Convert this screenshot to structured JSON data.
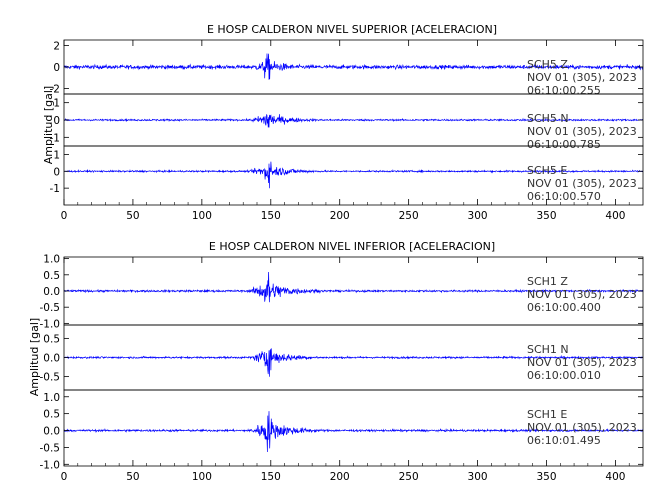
{
  "chart_data": [
    {
      "type": "line",
      "title": "E HOSP CALDERON NIVEL SUPERIOR [ACELERACION]",
      "ylabel": "Amplitud [gal]",
      "xlim": [
        0,
        420
      ],
      "xticks": [
        0,
        50,
        100,
        150,
        200,
        250,
        300,
        350,
        400
      ],
      "xtick_labels": [
        "0",
        "50",
        "100",
        "150",
        "200",
        "250",
        "300",
        "350",
        "400"
      ],
      "series": [
        {
          "name": "SCH5 Z",
          "station": "SCH5",
          "component": "Z",
          "date": "NOV 01 (305), 2023",
          "start_time": "06:10:00.255",
          "ylim": [
            -2.5,
            2.5
          ],
          "yticks": [
            -2,
            0,
            2
          ],
          "ytick_labels": [
            "-2",
            "0",
            "2"
          ],
          "peak_abs_amplitude": 2.0,
          "onset_s": 133,
          "peak_time_s": 148,
          "noise_amplitude": 0.3,
          "color": "#0000ff"
        },
        {
          "name": "SCH5 N",
          "station": "SCH5",
          "component": "N",
          "date": "NOV 01 (305), 2023",
          "start_time": "06:10:00.785",
          "ylim": [
            -1.5,
            1.5
          ],
          "yticks": [
            -1,
            0,
            1
          ],
          "ytick_labels": [
            "-1",
            "0",
            "1"
          ],
          "peak_abs_amplitude": 1.2,
          "onset_s": 133,
          "peak_time_s": 148,
          "noise_amplitude": 0.08,
          "color": "#0000ff"
        },
        {
          "name": "SCH5 E",
          "station": "SCH5",
          "component": "E",
          "date": "NOV 01 (305), 2023",
          "start_time": "06:10:00.570",
          "ylim": [
            -2,
            1.5
          ],
          "yticks": [
            -1,
            0,
            1
          ],
          "ytick_labels": [
            "-1",
            "0",
            "1"
          ],
          "peak_abs_amplitude": 1.3,
          "onset_s": 133,
          "peak_time_s": 148,
          "noise_amplitude": 0.08,
          "color": "#0000ff"
        }
      ]
    },
    {
      "type": "line",
      "title": "E HOSP CALDERON NIVEL INFERIOR [ACELERACION]",
      "ylabel": "Amplitud [gal]",
      "xlim": [
        0,
        420
      ],
      "xticks": [
        0,
        50,
        100,
        150,
        200,
        250,
        300,
        350,
        400
      ],
      "xtick_labels": [
        "0",
        "50",
        "100",
        "150",
        "200",
        "250",
        "300",
        "350",
        "400"
      ],
      "series": [
        {
          "name": "SCH1 Z",
          "station": "SCH1",
          "component": "Z",
          "date": "NOV 01 (305), 2023",
          "start_time": "06:10:00.400",
          "ylim": [
            -1.05,
            1.05
          ],
          "yticks": [
            -1.0,
            -0.5,
            0.0,
            0.5,
            1.0
          ],
          "ytick_labels": [
            "-1.0",
            "-0.5",
            "0.0",
            "0.5",
            "1.0"
          ],
          "peak_abs_amplitude": 1.0,
          "onset_s": 133,
          "peak_time_s": 148,
          "noise_amplitude": 0.05,
          "color": "#0000ff"
        },
        {
          "name": "SCH1 N",
          "station": "SCH1",
          "component": "N",
          "date": "NOV 01 (305), 2023",
          "start_time": "06:10:00.010",
          "ylim": [
            -0.85,
            0.85
          ],
          "yticks": [
            -0.5,
            0.0,
            0.5
          ],
          "ytick_labels": [
            "-0.5",
            "0.0",
            "0.5"
          ],
          "peak_abs_amplitude": 0.7,
          "onset_s": 133,
          "peak_time_s": 148,
          "noise_amplitude": 0.04,
          "color": "#0000ff"
        },
        {
          "name": "SCH1 E",
          "station": "SCH1",
          "component": "E",
          "date": "NOV 01 (305), 2023",
          "start_time": "06:10:01.495",
          "ylim": [
            -1.05,
            1.2
          ],
          "yticks": [
            -1.0,
            -0.5,
            0.0,
            0.5,
            1.0
          ],
          "ytick_labels": [
            "-1.0",
            "-0.5",
            "0.0",
            "0.5",
            "1.0"
          ],
          "peak_abs_amplitude": 1.0,
          "onset_s": 133,
          "peak_time_s": 148,
          "noise_amplitude": 0.05,
          "color": "#0000ff"
        }
      ]
    }
  ]
}
